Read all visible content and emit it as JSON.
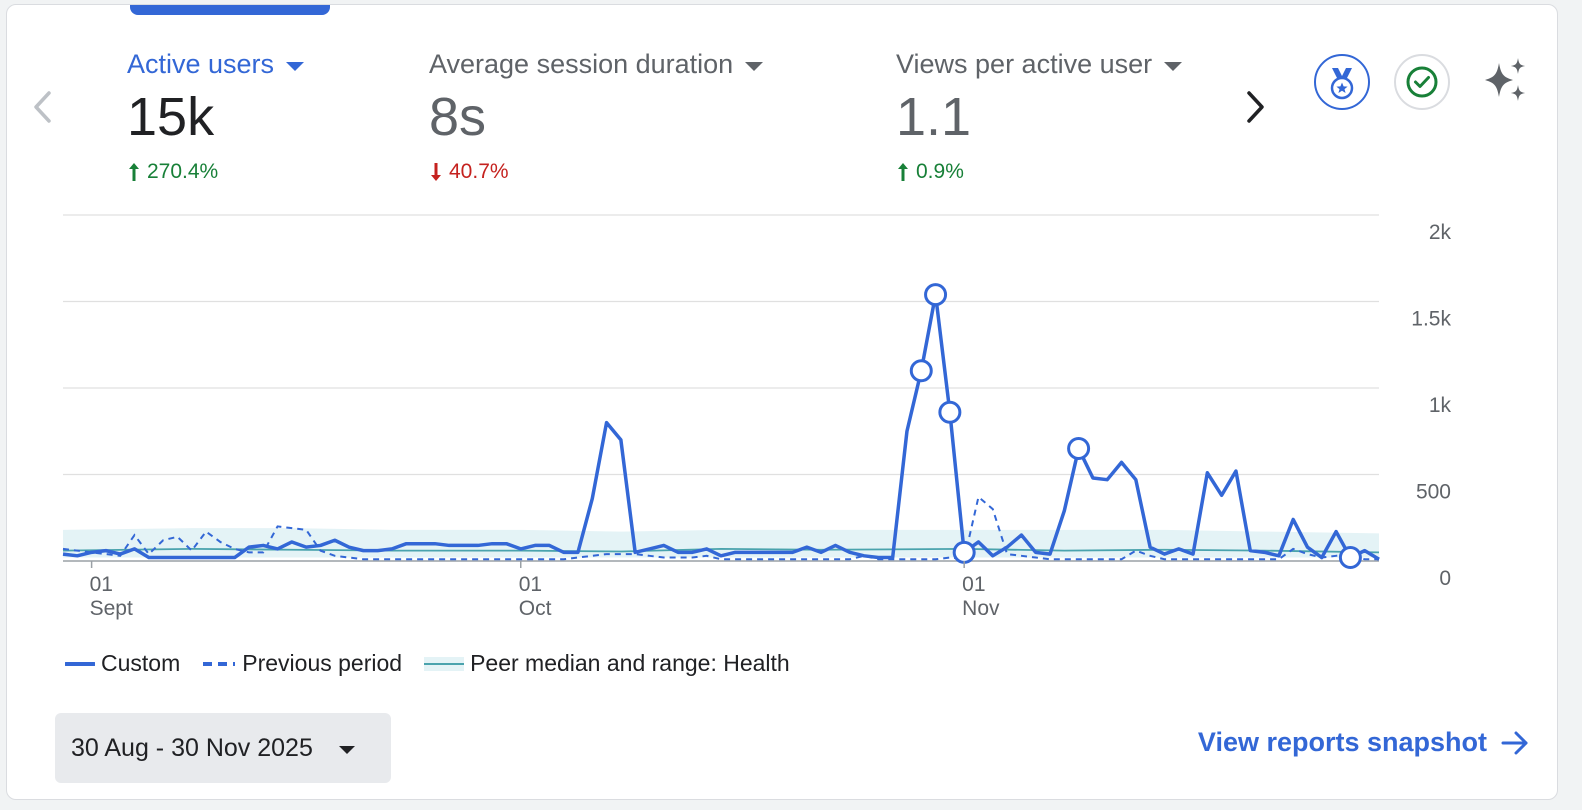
{
  "metrics": [
    {
      "label": "Active users",
      "value": "15k",
      "change": "270.4%",
      "direction": "up",
      "active": true
    },
    {
      "label": "Average session duration",
      "value": "8s",
      "change": "40.7%",
      "direction": "down",
      "active": false
    },
    {
      "label": "Views per active user",
      "value": "1.1",
      "change": "0.9%",
      "direction": "up",
      "active": false
    }
  ],
  "icons": {
    "prev": "chevron-left-icon",
    "next": "chevron-right-icon",
    "benchmark": "medal-icon",
    "check": "check-circle-icon",
    "insights": "sparkle-icon"
  },
  "colors": {
    "accent": "#3367d6",
    "up": "#188038",
    "down": "#c5221f",
    "peer": "#4aa3ad",
    "peer_fill": "#e4f3f6"
  },
  "chart_data": {
    "type": "line",
    "x_start": "2025-08-30",
    "x_end": "2025-11-30",
    "x_ticks": [
      {
        "date": "2025-09-01",
        "day": "01",
        "month": "Sept"
      },
      {
        "date": "2025-10-01",
        "day": "01",
        "month": "Oct"
      },
      {
        "date": "2025-11-01",
        "day": "01",
        "month": "Nov"
      }
    ],
    "y_ticks": [
      {
        "value": 0,
        "label": "0"
      },
      {
        "value": 500,
        "label": "500"
      },
      {
        "value": 1000,
        "label": "1k"
      },
      {
        "value": 1500,
        "label": "1.5k"
      },
      {
        "value": 2000,
        "label": "2k"
      }
    ],
    "ylim": [
      0,
      2000
    ],
    "grid": true,
    "series": [
      {
        "name": "Custom",
        "style": "solid",
        "marked_dates": [
          "2025-10-29",
          "2025-10-30",
          "2025-10-31",
          "2025-11-01",
          "2025-11-09",
          "2025-11-28"
        ],
        "points": [
          [
            "2025-08-30",
            40
          ],
          [
            "2025-08-31",
            30
          ],
          [
            "2025-09-01",
            50
          ],
          [
            "2025-09-02",
            60
          ],
          [
            "2025-09-03",
            40
          ],
          [
            "2025-09-04",
            70
          ],
          [
            "2025-09-05",
            20
          ],
          [
            "2025-09-06",
            20
          ],
          [
            "2025-09-07",
            20
          ],
          [
            "2025-09-08",
            20
          ],
          [
            "2025-09-09",
            20
          ],
          [
            "2025-09-10",
            20
          ],
          [
            "2025-09-11",
            20
          ],
          [
            "2025-09-12",
            80
          ],
          [
            "2025-09-13",
            90
          ],
          [
            "2025-09-14",
            70
          ],
          [
            "2025-09-15",
            110
          ],
          [
            "2025-09-16",
            80
          ],
          [
            "2025-09-17",
            90
          ],
          [
            "2025-09-18",
            120
          ],
          [
            "2025-09-19",
            80
          ],
          [
            "2025-09-20",
            60
          ],
          [
            "2025-09-21",
            60
          ],
          [
            "2025-09-22",
            70
          ],
          [
            "2025-09-23",
            100
          ],
          [
            "2025-09-24",
            100
          ],
          [
            "2025-09-25",
            100
          ],
          [
            "2025-09-26",
            90
          ],
          [
            "2025-09-27",
            90
          ],
          [
            "2025-09-28",
            90
          ],
          [
            "2025-09-29",
            100
          ],
          [
            "2025-09-30",
            100
          ],
          [
            "2025-10-01",
            70
          ],
          [
            "2025-10-02",
            90
          ],
          [
            "2025-10-03",
            90
          ],
          [
            "2025-10-04",
            50
          ],
          [
            "2025-10-05",
            50
          ],
          [
            "2025-10-06",
            360
          ],
          [
            "2025-10-07",
            800
          ],
          [
            "2025-10-08",
            700
          ],
          [
            "2025-10-09",
            50
          ],
          [
            "2025-10-10",
            70
          ],
          [
            "2025-10-11",
            90
          ],
          [
            "2025-10-12",
            50
          ],
          [
            "2025-10-13",
            50
          ],
          [
            "2025-10-14",
            70
          ],
          [
            "2025-10-15",
            30
          ],
          [
            "2025-10-16",
            50
          ],
          [
            "2025-10-17",
            50
          ],
          [
            "2025-10-18",
            50
          ],
          [
            "2025-10-19",
            50
          ],
          [
            "2025-10-20",
            50
          ],
          [
            "2025-10-21",
            80
          ],
          [
            "2025-10-22",
            50
          ],
          [
            "2025-10-23",
            90
          ],
          [
            "2025-10-24",
            50
          ],
          [
            "2025-10-25",
            30
          ],
          [
            "2025-10-26",
            20
          ],
          [
            "2025-10-27",
            20
          ],
          [
            "2025-10-28",
            750
          ],
          [
            "2025-10-29",
            1100
          ],
          [
            "2025-10-30",
            1540
          ],
          [
            "2025-10-31",
            860
          ],
          [
            "2025-11-01",
            50
          ],
          [
            "2025-11-02",
            110
          ],
          [
            "2025-11-03",
            30
          ],
          [
            "2025-11-04",
            80
          ],
          [
            "2025-11-05",
            150
          ],
          [
            "2025-11-06",
            50
          ],
          [
            "2025-11-07",
            40
          ],
          [
            "2025-11-08",
            290
          ],
          [
            "2025-11-09",
            650
          ],
          [
            "2025-11-10",
            480
          ],
          [
            "2025-11-11",
            470
          ],
          [
            "2025-11-12",
            570
          ],
          [
            "2025-11-13",
            470
          ],
          [
            "2025-11-14",
            80
          ],
          [
            "2025-11-15",
            40
          ],
          [
            "2025-11-16",
            70
          ],
          [
            "2025-11-17",
            40
          ],
          [
            "2025-11-18",
            510
          ],
          [
            "2025-11-19",
            380
          ],
          [
            "2025-11-20",
            520
          ],
          [
            "2025-11-21",
            60
          ],
          [
            "2025-11-22",
            50
          ],
          [
            "2025-11-23",
            30
          ],
          [
            "2025-11-24",
            240
          ],
          [
            "2025-11-25",
            80
          ],
          [
            "2025-11-26",
            20
          ],
          [
            "2025-11-27",
            170
          ],
          [
            "2025-11-28",
            20
          ],
          [
            "2025-11-29",
            60
          ],
          [
            "2025-11-30",
            10
          ]
        ]
      },
      {
        "name": "Previous period",
        "style": "dashed",
        "points": [
          [
            "2025-08-30",
            70
          ],
          [
            "2025-08-31",
            60
          ],
          [
            "2025-09-01",
            50
          ],
          [
            "2025-09-02",
            40
          ],
          [
            "2025-09-03",
            30
          ],
          [
            "2025-09-04",
            150
          ],
          [
            "2025-09-05",
            40
          ],
          [
            "2025-09-06",
            120
          ],
          [
            "2025-09-07",
            140
          ],
          [
            "2025-09-08",
            60
          ],
          [
            "2025-09-09",
            170
          ],
          [
            "2025-09-10",
            110
          ],
          [
            "2025-09-11",
            70
          ],
          [
            "2025-09-12",
            50
          ],
          [
            "2025-09-13",
            50
          ],
          [
            "2025-09-14",
            200
          ],
          [
            "2025-09-15",
            190
          ],
          [
            "2025-09-16",
            180
          ],
          [
            "2025-09-17",
            60
          ],
          [
            "2025-09-18",
            30
          ],
          [
            "2025-09-19",
            20
          ],
          [
            "2025-09-20",
            10
          ],
          [
            "2025-09-21",
            10
          ],
          [
            "2025-09-22",
            10
          ],
          [
            "2025-09-23",
            10
          ],
          [
            "2025-09-24",
            10
          ],
          [
            "2025-09-25",
            10
          ],
          [
            "2025-09-26",
            10
          ],
          [
            "2025-09-27",
            10
          ],
          [
            "2025-09-28",
            10
          ],
          [
            "2025-09-29",
            10
          ],
          [
            "2025-09-30",
            10
          ],
          [
            "2025-10-01",
            10
          ],
          [
            "2025-10-02",
            10
          ],
          [
            "2025-10-03",
            10
          ],
          [
            "2025-10-04",
            10
          ],
          [
            "2025-10-05",
            20
          ],
          [
            "2025-10-06",
            30
          ],
          [
            "2025-10-07",
            40
          ],
          [
            "2025-10-08",
            40
          ],
          [
            "2025-10-09",
            40
          ],
          [
            "2025-10-10",
            30
          ],
          [
            "2025-10-11",
            20
          ],
          [
            "2025-10-12",
            20
          ],
          [
            "2025-10-13",
            20
          ],
          [
            "2025-10-14",
            30
          ],
          [
            "2025-10-15",
            10
          ],
          [
            "2025-10-16",
            10
          ],
          [
            "2025-10-17",
            10
          ],
          [
            "2025-10-18",
            10
          ],
          [
            "2025-10-19",
            10
          ],
          [
            "2025-10-20",
            10
          ],
          [
            "2025-10-21",
            10
          ],
          [
            "2025-10-22",
            10
          ],
          [
            "2025-10-23",
            10
          ],
          [
            "2025-10-24",
            10
          ],
          [
            "2025-10-25",
            30
          ],
          [
            "2025-10-26",
            10
          ],
          [
            "2025-10-27",
            10
          ],
          [
            "2025-10-28",
            10
          ],
          [
            "2025-10-29",
            10
          ],
          [
            "2025-10-30",
            10
          ],
          [
            "2025-10-31",
            20
          ],
          [
            "2025-11-01",
            10
          ],
          [
            "2025-11-02",
            370
          ],
          [
            "2025-11-03",
            300
          ],
          [
            "2025-11-04",
            40
          ],
          [
            "2025-11-05",
            30
          ],
          [
            "2025-11-06",
            20
          ],
          [
            "2025-11-07",
            10
          ],
          [
            "2025-11-08",
            10
          ],
          [
            "2025-11-09",
            10
          ],
          [
            "2025-11-10",
            10
          ],
          [
            "2025-11-11",
            10
          ],
          [
            "2025-11-12",
            10
          ],
          [
            "2025-11-13",
            60
          ],
          [
            "2025-11-14",
            30
          ],
          [
            "2025-11-15",
            10
          ],
          [
            "2025-11-16",
            10
          ],
          [
            "2025-11-17",
            10
          ],
          [
            "2025-11-18",
            10
          ],
          [
            "2025-11-19",
            10
          ],
          [
            "2025-11-20",
            10
          ],
          [
            "2025-11-21",
            10
          ],
          [
            "2025-11-22",
            10
          ],
          [
            "2025-11-23",
            10
          ],
          [
            "2025-11-24",
            70
          ],
          [
            "2025-11-25",
            40
          ],
          [
            "2025-11-26",
            20
          ],
          [
            "2025-11-27",
            30
          ],
          [
            "2025-11-28",
            40
          ],
          [
            "2025-11-29",
            10
          ],
          [
            "2025-11-30",
            10
          ]
        ]
      },
      {
        "name": "Peer median and range: Health",
        "style": "band",
        "points": [
          [
            "2025-08-30",
            60,
            20,
            180
          ],
          [
            "2025-09-08",
            70,
            20,
            190
          ],
          [
            "2025-09-15",
            65,
            20,
            190
          ],
          [
            "2025-09-22",
            60,
            20,
            180
          ],
          [
            "2025-10-01",
            60,
            20,
            180
          ],
          [
            "2025-10-08",
            55,
            20,
            170
          ],
          [
            "2025-10-15",
            70,
            20,
            180
          ],
          [
            "2025-10-22",
            65,
            20,
            180
          ],
          [
            "2025-11-01",
            70,
            20,
            180
          ],
          [
            "2025-11-08",
            60,
            20,
            180
          ],
          [
            "2025-11-15",
            65,
            20,
            180
          ],
          [
            "2025-11-22",
            60,
            20,
            170
          ],
          [
            "2025-11-30",
            50,
            20,
            160
          ]
        ]
      }
    ]
  },
  "legend": [
    {
      "label": "Custom",
      "style": "solid"
    },
    {
      "label": "Previous period",
      "style": "dashed"
    },
    {
      "label": "Peer median and range: Health",
      "style": "band"
    }
  ],
  "date_range": "30 Aug - 30 Nov 2025",
  "snapshot_link": "View reports snapshot"
}
